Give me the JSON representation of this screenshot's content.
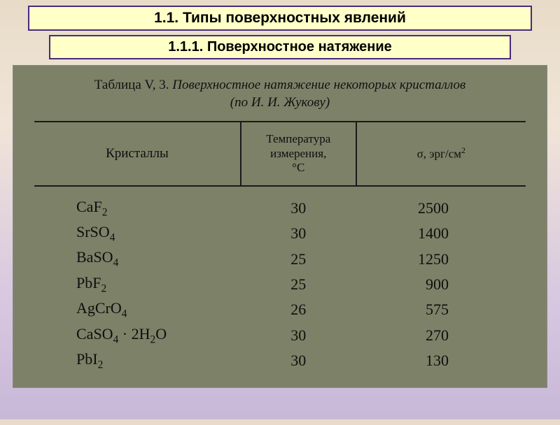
{
  "headers": {
    "main": "1.1. Типы поверхностных явлений",
    "sub": "1.1.1. Поверхностное натяжение"
  },
  "caption": {
    "line1_prefix": "Таблица V, 3. ",
    "line1_italic": "Поверхностное натяжение некоторых кристаллов",
    "line2_italic": "(по И. И. Жукову)"
  },
  "table": {
    "columns": {
      "c1": "Кристаллы",
      "c2_l1": "Температура",
      "c2_l2": "измерения,",
      "c2_l3": "°C",
      "c3_prefix": "σ, эрг/см"
    },
    "rows": [
      {
        "formula_html": "CaF<span class=\"sub\">2</span>",
        "temp": "30",
        "sigma": "2500"
      },
      {
        "formula_html": "SrSO<span class=\"sub\">4</span>",
        "temp": "30",
        "sigma": "1400"
      },
      {
        "formula_html": "BaSO<span class=\"sub\">4</span>",
        "temp": "25",
        "sigma": "1250"
      },
      {
        "formula_html": "PbF<span class=\"sub\">2</span>",
        "temp": "25",
        "sigma": "900"
      },
      {
        "formula_html": "AgCrO<span class=\"sub\">4</span>",
        "temp": "26",
        "sigma": "575"
      },
      {
        "formula_html": "CaSO<span class=\"sub\">4</span> · 2H<span class=\"sub\">2</span>O",
        "temp": "30",
        "sigma": "270"
      },
      {
        "formula_html": "PbI<span class=\"sub\">2</span>",
        "temp": "30",
        "sigma": "130"
      }
    ]
  },
  "colors": {
    "box_bg": "#ffffc8",
    "box_border": "#4a2a7a",
    "scan_bg": "#7d8168",
    "rule": "#1a1a1a"
  }
}
